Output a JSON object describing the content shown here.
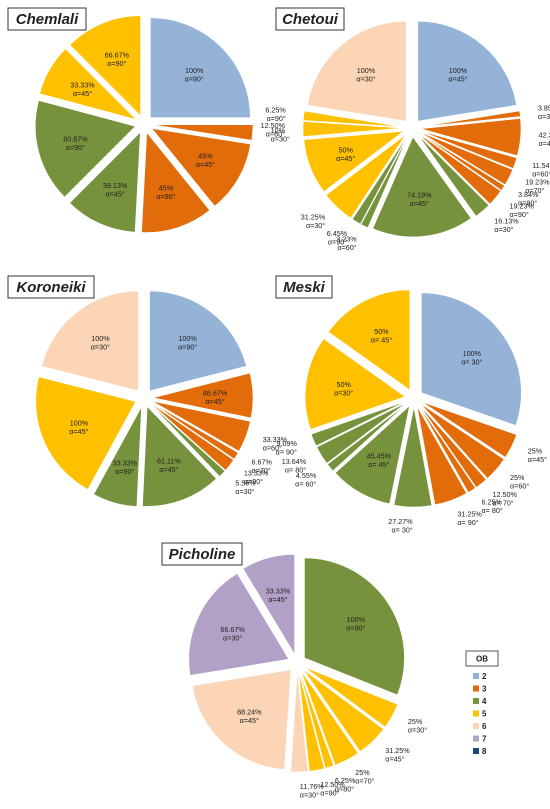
{
  "colors": {
    "2": "#95b3d7",
    "3": "#e26b0a",
    "4": "#76923c",
    "5": "#ffc000",
    "6": "#fbd5b5",
    "7": "#b2a1c7",
    "8": "#1f497d"
  },
  "legend": {
    "title": "OB",
    "items": [
      "2",
      "3",
      "4",
      "5",
      "6",
      "7",
      "8"
    ]
  },
  "chart_data": [
    {
      "type": "pie",
      "title": "Chemlali",
      "slices": [
        {
          "cls": "2",
          "pct": "100%",
          "alpha": "α=90°",
          "value": 90
        },
        {
          "cls": "3",
          "pct": "10%",
          "alpha": "α=30°",
          "value": 9
        },
        {
          "cls": "3",
          "pct": "45%",
          "alpha": "α=45°",
          "value": 42
        },
        {
          "cls": "3",
          "pct": "45%",
          "alpha": "α=90°",
          "value": 42
        },
        {
          "cls": "4",
          "pct": "39.13%",
          "alpha": "α=45°",
          "value": 42
        },
        {
          "cls": "4",
          "pct": "60.87%",
          "alpha": "α=90°",
          "value": 60
        },
        {
          "cls": "5",
          "pct": "33.33%",
          "alpha": "α=45°",
          "value": 30
        },
        {
          "cls": "5",
          "pct": "66.67%",
          "alpha": "α=90°",
          "value": 45
        }
      ]
    },
    {
      "type": "pie",
      "title": "Chetoui",
      "slices": [
        {
          "cls": "2",
          "pct": "100%",
          "alpha": "α=45°",
          "value": 75
        },
        {
          "cls": "3",
          "pct": "3.85%",
          "alpha": "α=30°",
          "value": 3
        },
        {
          "cls": "3",
          "pct": "42.31%",
          "alpha": "α=45°",
          "value": 20
        },
        {
          "cls": "3",
          "pct": "11.54%",
          "alpha": "α=60°",
          "value": 6
        },
        {
          "cls": "3",
          "pct": "19.23%",
          "alpha": "α=70°",
          "value": 9
        },
        {
          "cls": "3",
          "pct": "3.84%",
          "alpha": "α=80°",
          "value": 3
        },
        {
          "cls": "3",
          "pct": "19.23%",
          "alpha": "α=90°",
          "value": 9
        },
        {
          "cls": "4",
          "pct": "16.13%",
          "alpha": "α=30°",
          "value": 9
        },
        {
          "cls": "4",
          "pct": "74.19%",
          "alpha": "α=45°",
          "value": 55
        },
        {
          "cls": "4",
          "pct": "3.23%",
          "alpha": "α=60°",
          "value": 4
        },
        {
          "cls": "4",
          "pct": "6.45%",
          "alpha": "α=90°",
          "value": 5
        },
        {
          "cls": "5",
          "pct": "31.25%",
          "alpha": "α=30°",
          "value": 18
        },
        {
          "cls": "5",
          "pct": "50%",
          "alpha": "α=45°",
          "value": 30
        },
        {
          "cls": "5",
          "pct": "12.50%",
          "alpha": "α=60°",
          "value": 8
        },
        {
          "cls": "5",
          "pct": "6.25%",
          "alpha": "α=90°",
          "value": 5
        },
        {
          "cls": "6",
          "pct": "100%",
          "alpha": "α=30°",
          "value": 75
        }
      ]
    },
    {
      "type": "pie",
      "title": "Koroneiki",
      "slices": [
        {
          "cls": "2",
          "pct": "100%",
          "alpha": "α=90°",
          "value": 70
        },
        {
          "cls": "3",
          "pct": "46.67%",
          "alpha": "α=45°",
          "value": 24
        },
        {
          "cls": "3",
          "pct": "33.33%",
          "alpha": "α=60°",
          "value": 17
        },
        {
          "cls": "3",
          "pct": "6.67%",
          "alpha": "α=70°",
          "value": 4
        },
        {
          "cls": "3",
          "pct": "13.33%",
          "alpha": "α=90°",
          "value": 7
        },
        {
          "cls": "4",
          "pct": "5.56%",
          "alpha": "α=30°",
          "value": 4
        },
        {
          "cls": "4",
          "pct": "61.11%",
          "alpha": "α=45°",
          "value": 43
        },
        {
          "cls": "4",
          "pct": "33.33%",
          "alpha": "α=90°",
          "value": 24
        },
        {
          "cls": "5",
          "pct": "100%",
          "alpha": "α=45°",
          "value": 70
        },
        {
          "cls": "6",
          "pct": "100%",
          "alpha": "α=30°",
          "value": 70
        }
      ]
    },
    {
      "type": "pie",
      "title": "Meski",
      "slices": [
        {
          "cls": "2",
          "pct": "100%",
          "alpha": "α= 30°",
          "value": 90
        },
        {
          "cls": "3",
          "pct": "25%",
          "alpha": "α=45°",
          "value": 12
        },
        {
          "cls": "3",
          "pct": "25%",
          "alpha": "α=60°",
          "value": 12
        },
        {
          "cls": "3",
          "pct": "12.50%",
          "alpha": "α= 70°",
          "value": 6
        },
        {
          "cls": "3",
          "pct": "6.25%",
          "alpha": "α= 80°",
          "value": 4
        },
        {
          "cls": "3",
          "pct": "31.25%",
          "alpha": "α= 90°",
          "value": 16
        },
        {
          "cls": "4",
          "pct": "27.27%",
          "alpha": "α= 30°",
          "value": 18
        },
        {
          "cls": "4",
          "pct": "45.45%",
          "alpha": "α= 45°",
          "value": 30
        },
        {
          "cls": "4",
          "pct": "4.55%",
          "alpha": "α= 60°",
          "value": 4
        },
        {
          "cls": "4",
          "pct": "13.64%",
          "alpha": "α= 80°",
          "value": 9
        },
        {
          "cls": "4",
          "pct": "9.09%",
          "alpha": "α= 90°",
          "value": 6
        },
        {
          "cls": "5",
          "pct": "50%",
          "alpha": "α=30°",
          "value": 45
        },
        {
          "cls": "5",
          "pct": "50%",
          "alpha": "α= 45°",
          "value": 45
        }
      ]
    },
    {
      "type": "pie",
      "title": "Picholine",
      "slices": [
        {
          "cls": "4",
          "pct": "100%",
          "alpha": "α=90°",
          "value": 90
        },
        {
          "cls": "5",
          "pct": "25%",
          "alpha": "α=30°",
          "value": 12
        },
        {
          "cls": "5",
          "pct": "31.25%",
          "alpha": "α=45°",
          "value": 15
        },
        {
          "cls": "5",
          "pct": "25%",
          "alpha": "α=70°",
          "value": 12
        },
        {
          "cls": "5",
          "pct": "6.25%",
          "alpha": "α=80°",
          "value": 4
        },
        {
          "cls": "5",
          "pct": "12.50%",
          "alpha": "α=90°",
          "value": 7
        },
        {
          "cls": "6",
          "pct": "11.76%",
          "alpha": "α=30°",
          "value": 8
        },
        {
          "cls": "6",
          "pct": "88.24%",
          "alpha": "α=45°",
          "value": 62
        },
        {
          "cls": "7",
          "pct": "66.67%",
          "alpha": "α=30°",
          "value": 55
        },
        {
          "cls": "7",
          "pct": "33.33%",
          "alpha": "α=45°",
          "value": 25
        }
      ]
    }
  ]
}
